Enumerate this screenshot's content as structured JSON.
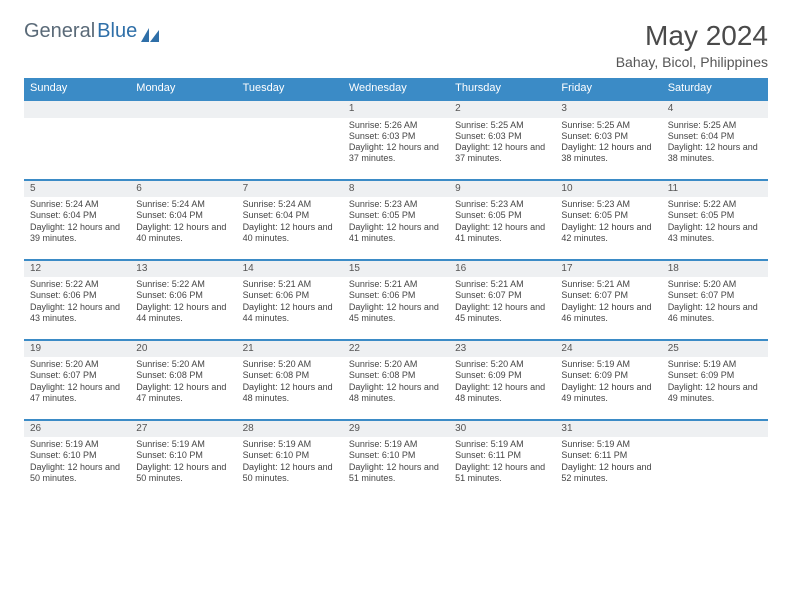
{
  "logo": {
    "general": "General",
    "blue": "Blue"
  },
  "title": "May 2024",
  "subtitle": "Bahay, Bicol, Philippines",
  "colors": {
    "header_bg": "#3b8bc6",
    "header_text": "#ffffff",
    "daynum_bg": "#eef0f2",
    "border": "#3b8bc6",
    "text": "#444444",
    "title_color": "#4a4a4a",
    "logo_gray": "#5a6a78",
    "logo_blue": "#2f6fa8"
  },
  "weekdays": [
    "Sunday",
    "Monday",
    "Tuesday",
    "Wednesday",
    "Thursday",
    "Friday",
    "Saturday"
  ],
  "weeks": [
    [
      null,
      null,
      null,
      {
        "n": "1",
        "sr": "5:26 AM",
        "ss": "6:03 PM",
        "dl": "12 hours and 37 minutes."
      },
      {
        "n": "2",
        "sr": "5:25 AM",
        "ss": "6:03 PM",
        "dl": "12 hours and 37 minutes."
      },
      {
        "n": "3",
        "sr": "5:25 AM",
        "ss": "6:03 PM",
        "dl": "12 hours and 38 minutes."
      },
      {
        "n": "4",
        "sr": "5:25 AM",
        "ss": "6:04 PM",
        "dl": "12 hours and 38 minutes."
      }
    ],
    [
      {
        "n": "5",
        "sr": "5:24 AM",
        "ss": "6:04 PM",
        "dl": "12 hours and 39 minutes."
      },
      {
        "n": "6",
        "sr": "5:24 AM",
        "ss": "6:04 PM",
        "dl": "12 hours and 40 minutes."
      },
      {
        "n": "7",
        "sr": "5:24 AM",
        "ss": "6:04 PM",
        "dl": "12 hours and 40 minutes."
      },
      {
        "n": "8",
        "sr": "5:23 AM",
        "ss": "6:05 PM",
        "dl": "12 hours and 41 minutes."
      },
      {
        "n": "9",
        "sr": "5:23 AM",
        "ss": "6:05 PM",
        "dl": "12 hours and 41 minutes."
      },
      {
        "n": "10",
        "sr": "5:23 AM",
        "ss": "6:05 PM",
        "dl": "12 hours and 42 minutes."
      },
      {
        "n": "11",
        "sr": "5:22 AM",
        "ss": "6:05 PM",
        "dl": "12 hours and 43 minutes."
      }
    ],
    [
      {
        "n": "12",
        "sr": "5:22 AM",
        "ss": "6:06 PM",
        "dl": "12 hours and 43 minutes."
      },
      {
        "n": "13",
        "sr": "5:22 AM",
        "ss": "6:06 PM",
        "dl": "12 hours and 44 minutes."
      },
      {
        "n": "14",
        "sr": "5:21 AM",
        "ss": "6:06 PM",
        "dl": "12 hours and 44 minutes."
      },
      {
        "n": "15",
        "sr": "5:21 AM",
        "ss": "6:06 PM",
        "dl": "12 hours and 45 minutes."
      },
      {
        "n": "16",
        "sr": "5:21 AM",
        "ss": "6:07 PM",
        "dl": "12 hours and 45 minutes."
      },
      {
        "n": "17",
        "sr": "5:21 AM",
        "ss": "6:07 PM",
        "dl": "12 hours and 46 minutes."
      },
      {
        "n": "18",
        "sr": "5:20 AM",
        "ss": "6:07 PM",
        "dl": "12 hours and 46 minutes."
      }
    ],
    [
      {
        "n": "19",
        "sr": "5:20 AM",
        "ss": "6:07 PM",
        "dl": "12 hours and 47 minutes."
      },
      {
        "n": "20",
        "sr": "5:20 AM",
        "ss": "6:08 PM",
        "dl": "12 hours and 47 minutes."
      },
      {
        "n": "21",
        "sr": "5:20 AM",
        "ss": "6:08 PM",
        "dl": "12 hours and 48 minutes."
      },
      {
        "n": "22",
        "sr": "5:20 AM",
        "ss": "6:08 PM",
        "dl": "12 hours and 48 minutes."
      },
      {
        "n": "23",
        "sr": "5:20 AM",
        "ss": "6:09 PM",
        "dl": "12 hours and 48 minutes."
      },
      {
        "n": "24",
        "sr": "5:19 AM",
        "ss": "6:09 PM",
        "dl": "12 hours and 49 minutes."
      },
      {
        "n": "25",
        "sr": "5:19 AM",
        "ss": "6:09 PM",
        "dl": "12 hours and 49 minutes."
      }
    ],
    [
      {
        "n": "26",
        "sr": "5:19 AM",
        "ss": "6:10 PM",
        "dl": "12 hours and 50 minutes."
      },
      {
        "n": "27",
        "sr": "5:19 AM",
        "ss": "6:10 PM",
        "dl": "12 hours and 50 minutes."
      },
      {
        "n": "28",
        "sr": "5:19 AM",
        "ss": "6:10 PM",
        "dl": "12 hours and 50 minutes."
      },
      {
        "n": "29",
        "sr": "5:19 AM",
        "ss": "6:10 PM",
        "dl": "12 hours and 51 minutes."
      },
      {
        "n": "30",
        "sr": "5:19 AM",
        "ss": "6:11 PM",
        "dl": "12 hours and 51 minutes."
      },
      {
        "n": "31",
        "sr": "5:19 AM",
        "ss": "6:11 PM",
        "dl": "12 hours and 52 minutes."
      },
      null
    ]
  ],
  "labels": {
    "sunrise": "Sunrise:",
    "sunset": "Sunset:",
    "daylight": "Daylight:"
  }
}
